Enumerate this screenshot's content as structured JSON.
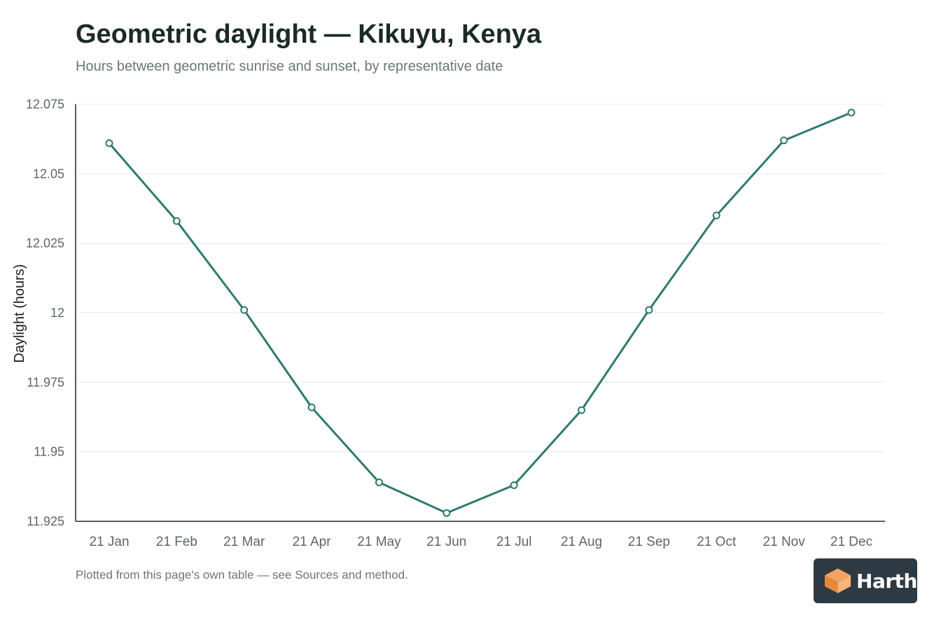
{
  "header": {
    "title": "Geometric daylight — Kikuyu, Kenya",
    "subtitle": "Hours between geometric sunrise and sunset, by representative date"
  },
  "footnote": "Plotted from this page's own table — see Sources and method.",
  "brand": {
    "name": "Harth",
    "icon": "cube-icon",
    "background": "#2d3a43",
    "icon_colors": [
      "#f4a261",
      "#e7893c"
    ]
  },
  "chart_data": {
    "type": "line",
    "title": "Geometric daylight — Kikuyu, Kenya",
    "subtitle": "Hours between geometric sunrise and sunset, by representative date",
    "xlabel": "",
    "ylabel": "Daylight (hours)",
    "categories": [
      "21 Jan",
      "21 Feb",
      "21 Mar",
      "21 Apr",
      "21 May",
      "21 Jun",
      "21 Jul",
      "21 Aug",
      "21 Sep",
      "21 Oct",
      "21 Nov",
      "21 Dec"
    ],
    "series": [
      {
        "values": [
          12.061,
          12.033,
          12.001,
          11.966,
          11.939,
          11.928,
          11.938,
          11.965,
          12.001,
          12.035,
          12.062,
          12.072
        ],
        "color": "#2e7a6e"
      }
    ],
    "ylim": [
      11.925,
      12.075
    ],
    "yticks": [
      "11.925",
      "11.95",
      "11.975",
      "12",
      "12.025",
      "12.05",
      "12.075"
    ],
    "grid": true,
    "legend": "none"
  }
}
